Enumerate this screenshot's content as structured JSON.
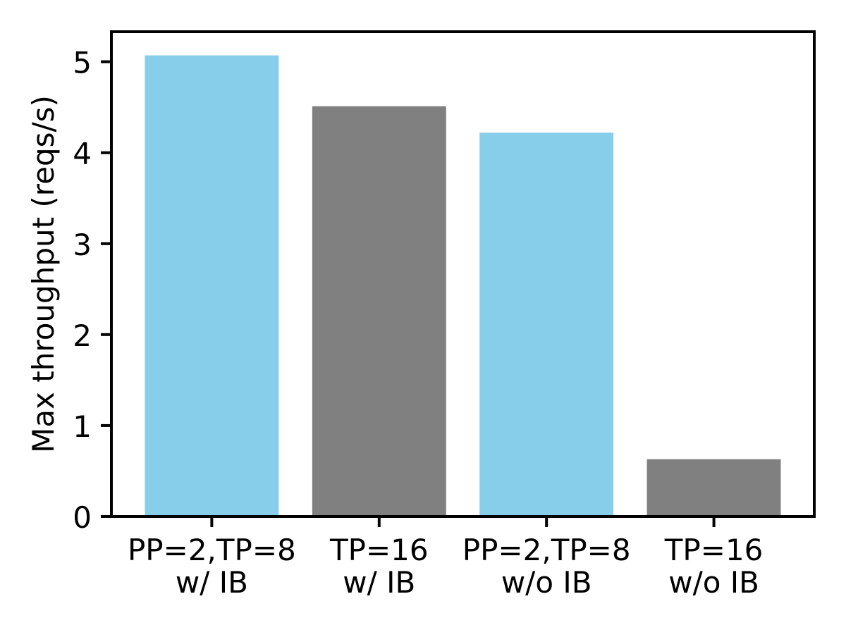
{
  "figure": {
    "background": "#ffffff"
  },
  "chart_data": {
    "type": "bar",
    "title": "",
    "xlabel": "",
    "ylabel": "Max throughput (reqs/s)",
    "categories": [
      "PP=2,TP=8\nw/ IB",
      "TP=16\nw/ IB",
      "PP=2,TP=8\nw/o IB",
      "TP=16\nw/o IB"
    ],
    "values": [
      5.07,
      4.51,
      4.22,
      0.63
    ],
    "bar_colors": [
      "#87ceeb",
      "#808080",
      "#87ceeb",
      "#808080"
    ],
    "x_positions": [
      0,
      1,
      2,
      3
    ],
    "bar_width": 0.8,
    "xlim": [
      -0.6,
      3.6
    ],
    "ylim": [
      0,
      5.33
    ],
    "yticks": [
      0,
      1,
      2,
      3,
      4,
      5
    ],
    "grid": false,
    "legend_position": "none",
    "axis_color": "#000000",
    "text_color": "#000000"
  }
}
